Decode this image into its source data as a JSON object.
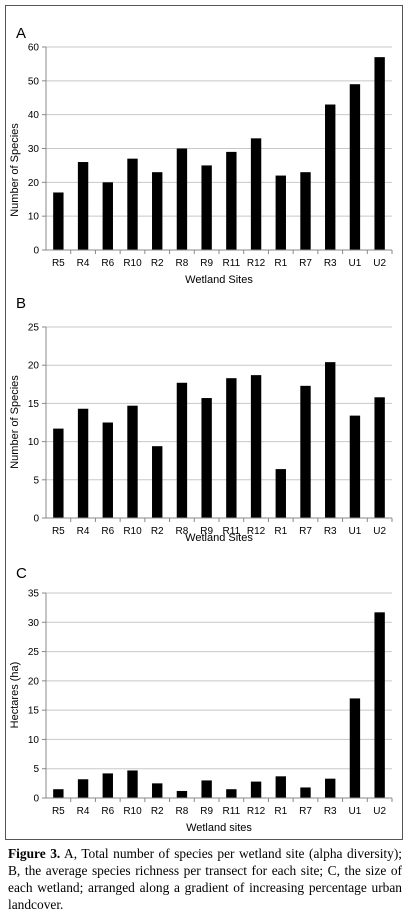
{
  "caption": {
    "label": "Figure 3.",
    "text": "A, Total number of species per wetland site (alpha diversity); B, the average species richness per transect for each site; C, the size of each wetland; arranged along a gradient of increasing percentage urban landcover."
  },
  "colors": {
    "bar": "#000000",
    "axis": "#888888",
    "grid": "#c8c8c8"
  },
  "chart_data": [
    {
      "type": "bar",
      "panel_label": "A",
      "categories": [
        "R5",
        "R4",
        "R6",
        "R10",
        "R2",
        "R8",
        "R9",
        "R11",
        "R12",
        "R1",
        "R7",
        "R3",
        "U1",
        "U2"
      ],
      "values": [
        17,
        26,
        20,
        27,
        23,
        30,
        25,
        29,
        33,
        22,
        23,
        43,
        49,
        57
      ],
      "xlabel": "Wetland Sites",
      "ylabel": "Number of Species",
      "ylim": [
        0,
        60
      ],
      "yticks": [
        0,
        10,
        20,
        30,
        40,
        50,
        60
      ],
      "grid": true
    },
    {
      "type": "bar",
      "panel_label": "B",
      "categories": [
        "R5",
        "R4",
        "R6",
        "R10",
        "R2",
        "R8",
        "R9",
        "R11",
        "R12",
        "R1",
        "R7",
        "R3",
        "U1",
        "U2"
      ],
      "values": [
        11.7,
        14.3,
        12.5,
        14.7,
        9.4,
        17.7,
        15.7,
        18.3,
        18.7,
        6.4,
        17.3,
        20.4,
        13.4,
        15.8
      ],
      "xlabel": "Wetland Sites",
      "ylabel": "Number of Species",
      "ylim": [
        0,
        25
      ],
      "yticks": [
        0,
        5,
        10,
        15,
        20,
        25
      ],
      "grid": true
    },
    {
      "type": "bar",
      "panel_label": "C",
      "categories": [
        "R5",
        "R4",
        "R6",
        "R10",
        "R2",
        "R8",
        "R9",
        "R11",
        "R12",
        "R1",
        "R7",
        "R3",
        "U1",
        "U2"
      ],
      "values": [
        1.5,
        3.2,
        4.2,
        4.7,
        2.5,
        1.2,
        3.0,
        1.5,
        2.8,
        3.7,
        1.8,
        3.3,
        17.0,
        31.7
      ],
      "xlabel": "Wetland sites",
      "ylabel": "Hectares (ha)",
      "ylim": [
        0,
        35
      ],
      "yticks": [
        0,
        5,
        10,
        15,
        20,
        25,
        30,
        35
      ],
      "grid": true
    }
  ]
}
